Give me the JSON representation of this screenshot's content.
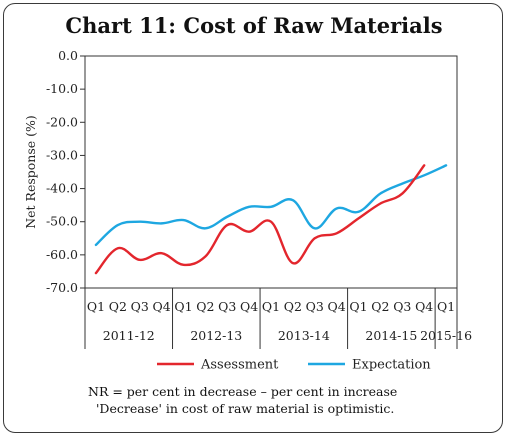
{
  "chart_data": {
    "type": "line",
    "title": "Chart 11: Cost of Raw Materials",
    "ylabel": "Net Response (%)",
    "xlabel": "",
    "ylim": [
      -70,
      0
    ],
    "yticks": [
      "0.0",
      "-10.0",
      "-20.0",
      "-30.0",
      "-40.0",
      "-50.0",
      "-60.0",
      "-70.0"
    ],
    "quarters": [
      "Q1",
      "Q2",
      "Q3",
      "Q4",
      "Q1",
      "Q2",
      "Q3",
      "Q4",
      "Q1",
      "Q2",
      "Q3",
      "Q4",
      "Q1",
      "Q2",
      "Q3",
      "Q4",
      "Q1"
    ],
    "years": [
      "2011-12",
      "2012-13",
      "2013-14",
      "2014-15",
      "2015-16"
    ],
    "grid": false,
    "legend_position": "bottom",
    "series": [
      {
        "name": "Assessment",
        "color": "#e3262d",
        "values": [
          -65.5,
          -58,
          -61.5,
          -59.5,
          -63,
          -60.5,
          -51,
          -53,
          -50,
          -62.5,
          -55,
          -53.5,
          -49,
          -44.5,
          -41.5,
          -33,
          null
        ]
      },
      {
        "name": "Expectation",
        "color": "#1ea7e1",
        "values": [
          -57,
          -51,
          -50,
          -50.5,
          -49.5,
          -52,
          -48.5,
          -45.5,
          -45.5,
          -43.5,
          -52,
          -46,
          -47,
          -41.5,
          -38.5,
          -36,
          -33
        ]
      }
    ]
  },
  "notes": [
    "NR = per cent in decrease – per cent in increase",
    "'Decrease' in cost of raw material is optimistic."
  ]
}
